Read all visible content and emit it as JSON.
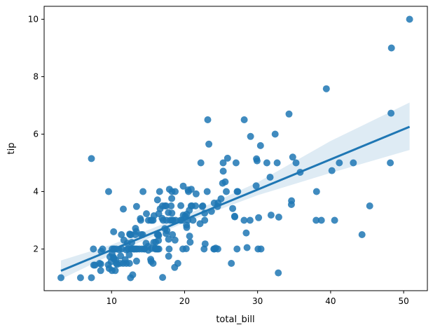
{
  "chart_data": {
    "type": "scatter",
    "title": "",
    "xlabel": "total_bill",
    "ylabel": "tip",
    "xlim": [
      0.77,
      53.25
    ],
    "ylim": [
      0.55,
      10.45
    ],
    "x_ticks": [
      10,
      20,
      30,
      40,
      50
    ],
    "y_ticks": [
      2,
      4,
      6,
      8,
      10
    ],
    "grid": false,
    "legend": "none",
    "colors": {
      "points": "#1f77b4",
      "line": "#1f77b4",
      "band": "#1f77b4",
      "axes": "#000000"
    },
    "regression": {
      "x_range": [
        3.07,
        50.81
      ],
      "slope": 0.105,
      "intercept": 0.92
    },
    "confidence_band": {
      "x": [
        3.07,
        10.0,
        20.0,
        30.0,
        40.0,
        50.81
      ],
      "lower": [
        0.95,
        1.8,
        2.92,
        3.87,
        4.65,
        5.45
      ],
      "upper": [
        1.6,
        2.15,
        3.17,
        4.32,
        5.76,
        7.1
      ]
    },
    "points": [
      [
        3.07,
        1.0
      ],
      [
        5.75,
        1.0
      ],
      [
        7.25,
        1.0
      ],
      [
        7.25,
        5.15
      ],
      [
        7.51,
        2.0
      ],
      [
        7.56,
        1.44
      ],
      [
        7.74,
        1.44
      ],
      [
        8.35,
        1.5
      ],
      [
        8.51,
        1.25
      ],
      [
        8.52,
        1.48
      ],
      [
        8.58,
        1.92
      ],
      [
        8.77,
        2.0
      ],
      [
        9.55,
        1.45
      ],
      [
        9.6,
        4.0
      ],
      [
        9.68,
        1.32
      ],
      [
        9.78,
        1.73
      ],
      [
        9.94,
        1.56
      ],
      [
        10.07,
        1.83
      ],
      [
        10.07,
        1.25
      ],
      [
        10.09,
        2.0
      ],
      [
        10.27,
        1.71
      ],
      [
        10.29,
        2.6
      ],
      [
        10.33,
        1.67
      ],
      [
        10.33,
        2.0
      ],
      [
        10.34,
        1.66
      ],
      [
        10.34,
        2.0
      ],
      [
        10.51,
        1.25
      ],
      [
        10.59,
        1.61
      ],
      [
        10.63,
        2.0
      ],
      [
        10.65,
        1.5
      ],
      [
        10.77,
        1.47
      ],
      [
        11.02,
        1.98
      ],
      [
        11.17,
        1.5
      ],
      [
        11.24,
        1.76
      ],
      [
        11.35,
        2.5
      ],
      [
        11.38,
        2.0
      ],
      [
        11.59,
        1.5
      ],
      [
        11.61,
        3.39
      ],
      [
        11.69,
        2.31
      ],
      [
        11.87,
        1.63
      ],
      [
        12.02,
        1.97
      ],
      [
        12.03,
        1.5
      ],
      [
        12.16,
        2.2
      ],
      [
        12.26,
        2.0
      ],
      [
        12.43,
        1.8
      ],
      [
        12.46,
        1.5
      ],
      [
        12.48,
        2.52
      ],
      [
        12.54,
        2.5
      ],
      [
        12.6,
        1.0
      ],
      [
        12.66,
        2.5
      ],
      [
        12.69,
        2.0
      ],
      [
        12.74,
        2.01
      ],
      [
        12.76,
        2.23
      ],
      [
        12.9,
        1.1
      ],
      [
        13.0,
        2.0
      ],
      [
        13.03,
        2.0
      ],
      [
        13.13,
        2.0
      ],
      [
        13.16,
        2.0
      ],
      [
        13.27,
        2.5
      ],
      [
        13.28,
        2.72
      ],
      [
        13.37,
        2.0
      ],
      [
        13.39,
        2.61
      ],
      [
        13.42,
        1.58
      ],
      [
        13.42,
        3.48
      ],
      [
        13.51,
        2.0
      ],
      [
        13.81,
        2.0
      ],
      [
        13.94,
        3.06
      ],
      [
        14.0,
        3.0
      ],
      [
        14.07,
        2.5
      ],
      [
        14.15,
        2.0
      ],
      [
        14.26,
        2.5
      ],
      [
        14.31,
        4.0
      ],
      [
        14.48,
        2.0
      ],
      [
        14.52,
        2.0
      ],
      [
        14.73,
        2.2
      ],
      [
        14.78,
        3.23
      ],
      [
        15.01,
        2.09
      ],
      [
        15.04,
        1.96
      ],
      [
        15.06,
        3.0
      ],
      [
        15.36,
        1.64
      ],
      [
        15.38,
        3.0
      ],
      [
        15.42,
        1.57
      ],
      [
        15.48,
        2.02
      ],
      [
        15.53,
        3.0
      ],
      [
        15.69,
        1.5
      ],
      [
        15.69,
        3.0
      ],
      [
        15.77,
        2.23
      ],
      [
        15.81,
        3.16
      ],
      [
        15.98,
        2.03
      ],
      [
        16.0,
        2.0
      ],
      [
        16.04,
        2.24
      ],
      [
        16.21,
        2.0
      ],
      [
        16.27,
        2.5
      ],
      [
        16.29,
        3.71
      ],
      [
        16.31,
        2.0
      ],
      [
        16.4,
        2.5
      ],
      [
        16.43,
        2.3
      ],
      [
        16.45,
        2.47
      ],
      [
        16.47,
        3.23
      ],
      [
        16.49,
        2.0
      ],
      [
        16.58,
        4.0
      ],
      [
        16.66,
        3.4
      ],
      [
        16.93,
        3.07
      ],
      [
        16.97,
        3.5
      ],
      [
        16.99,
        1.01
      ],
      [
        17.07,
        3.0
      ],
      [
        17.29,
        2.71
      ],
      [
        17.31,
        3.5
      ],
      [
        17.46,
        2.54
      ],
      [
        17.47,
        3.5
      ],
      [
        17.51,
        3.0
      ],
      [
        17.59,
        2.64
      ],
      [
        17.78,
        3.27
      ],
      [
        17.81,
        2.34
      ],
      [
        17.82,
        1.75
      ],
      [
        17.89,
        2.0
      ],
      [
        17.92,
        4.08
      ],
      [
        18.04,
        3.0
      ],
      [
        18.15,
        3.5
      ],
      [
        18.24,
        3.76
      ],
      [
        18.26,
        3.25
      ],
      [
        18.28,
        4.0
      ],
      [
        18.29,
        3.0
      ],
      [
        18.35,
        2.5
      ],
      [
        18.43,
        3.0
      ],
      [
        18.64,
        1.36
      ],
      [
        18.69,
        2.31
      ],
      [
        18.71,
        4.0
      ],
      [
        18.78,
        3.0
      ],
      [
        19.08,
        1.5
      ],
      [
        19.44,
        3.0
      ],
      [
        19.49,
        3.51
      ],
      [
        19.65,
        3.0
      ],
      [
        19.77,
        2.0
      ],
      [
        19.81,
        4.19
      ],
      [
        19.82,
        3.18
      ],
      [
        20.08,
        3.15
      ],
      [
        20.23,
        2.01
      ],
      [
        20.27,
        2.83
      ],
      [
        20.29,
        2.75
      ],
      [
        20.29,
        3.21
      ],
      [
        20.45,
        3.0
      ],
      [
        20.49,
        4.06
      ],
      [
        20.53,
        4.0
      ],
      [
        20.65,
        3.35
      ],
      [
        20.69,
        2.45
      ],
      [
        20.76,
        2.24
      ],
      [
        20.9,
        3.5
      ],
      [
        20.92,
        4.08
      ],
      [
        21.01,
        3.5
      ],
      [
        21.16,
        3.0
      ],
      [
        21.5,
        3.5
      ],
      [
        21.58,
        3.92
      ],
      [
        22.12,
        2.88
      ],
      [
        22.23,
        5.0
      ],
      [
        22.42,
        3.48
      ],
      [
        22.49,
        3.5
      ],
      [
        22.67,
        2.0
      ],
      [
        22.75,
        3.25
      ],
      [
        22.76,
        3.0
      ],
      [
        22.82,
        2.18
      ],
      [
        23.1,
        4.0
      ],
      [
        23.17,
        6.5
      ],
      [
        23.33,
        5.65
      ],
      [
        23.68,
        3.31
      ],
      [
        24.01,
        2.0
      ],
      [
        24.06,
        3.6
      ],
      [
        24.08,
        2.0
      ],
      [
        24.27,
        2.03
      ],
      [
        24.52,
        3.48
      ],
      [
        24.55,
        2.0
      ],
      [
        24.59,
        3.61
      ],
      [
        25.0,
        3.75
      ],
      [
        25.21,
        4.29
      ],
      [
        25.28,
        5.0
      ],
      [
        25.29,
        4.71
      ],
      [
        25.56,
        4.34
      ],
      [
        25.71,
        4.0
      ],
      [
        25.89,
        5.16
      ],
      [
        26.41,
        1.5
      ],
      [
        26.59,
        3.41
      ],
      [
        26.86,
        3.14
      ],
      [
        26.88,
        3.12
      ],
      [
        27.05,
        5.0
      ],
      [
        27.18,
        2.0
      ],
      [
        27.2,
        4.0
      ],
      [
        27.28,
        4.0
      ],
      [
        28.15,
        3.0
      ],
      [
        28.17,
        6.5
      ],
      [
        28.44,
        2.56
      ],
      [
        28.55,
        2.05
      ],
      [
        28.97,
        3.0
      ],
      [
        29.03,
        5.92
      ],
      [
        29.8,
        4.2
      ],
      [
        29.85,
        5.14
      ],
      [
        29.93,
        5.07
      ],
      [
        30.06,
        2.0
      ],
      [
        30.14,
        3.09
      ],
      [
        30.4,
        5.6
      ],
      [
        30.46,
        2.0
      ],
      [
        31.27,
        5.0
      ],
      [
        31.71,
        4.5
      ],
      [
        31.85,
        3.18
      ],
      [
        32.4,
        6.0
      ],
      [
        32.68,
        5.0
      ],
      [
        32.83,
        1.17
      ],
      [
        32.9,
        3.11
      ],
      [
        34.3,
        6.7
      ],
      [
        34.63,
        3.55
      ],
      [
        34.65,
        3.68
      ],
      [
        34.81,
        5.2
      ],
      [
        35.26,
        5.0
      ],
      [
        35.83,
        4.67
      ],
      [
        38.01,
        3.0
      ],
      [
        38.07,
        4.0
      ],
      [
        38.73,
        3.0
      ],
      [
        39.42,
        7.58
      ],
      [
        40.17,
        4.73
      ],
      [
        40.55,
        3.0
      ],
      [
        41.19,
        5.0
      ],
      [
        43.11,
        5.0
      ],
      [
        44.3,
        2.5
      ],
      [
        45.35,
        3.5
      ],
      [
        48.17,
        5.0
      ],
      [
        48.27,
        6.73
      ],
      [
        48.33,
        9.0
      ],
      [
        50.81,
        10.0
      ]
    ]
  }
}
